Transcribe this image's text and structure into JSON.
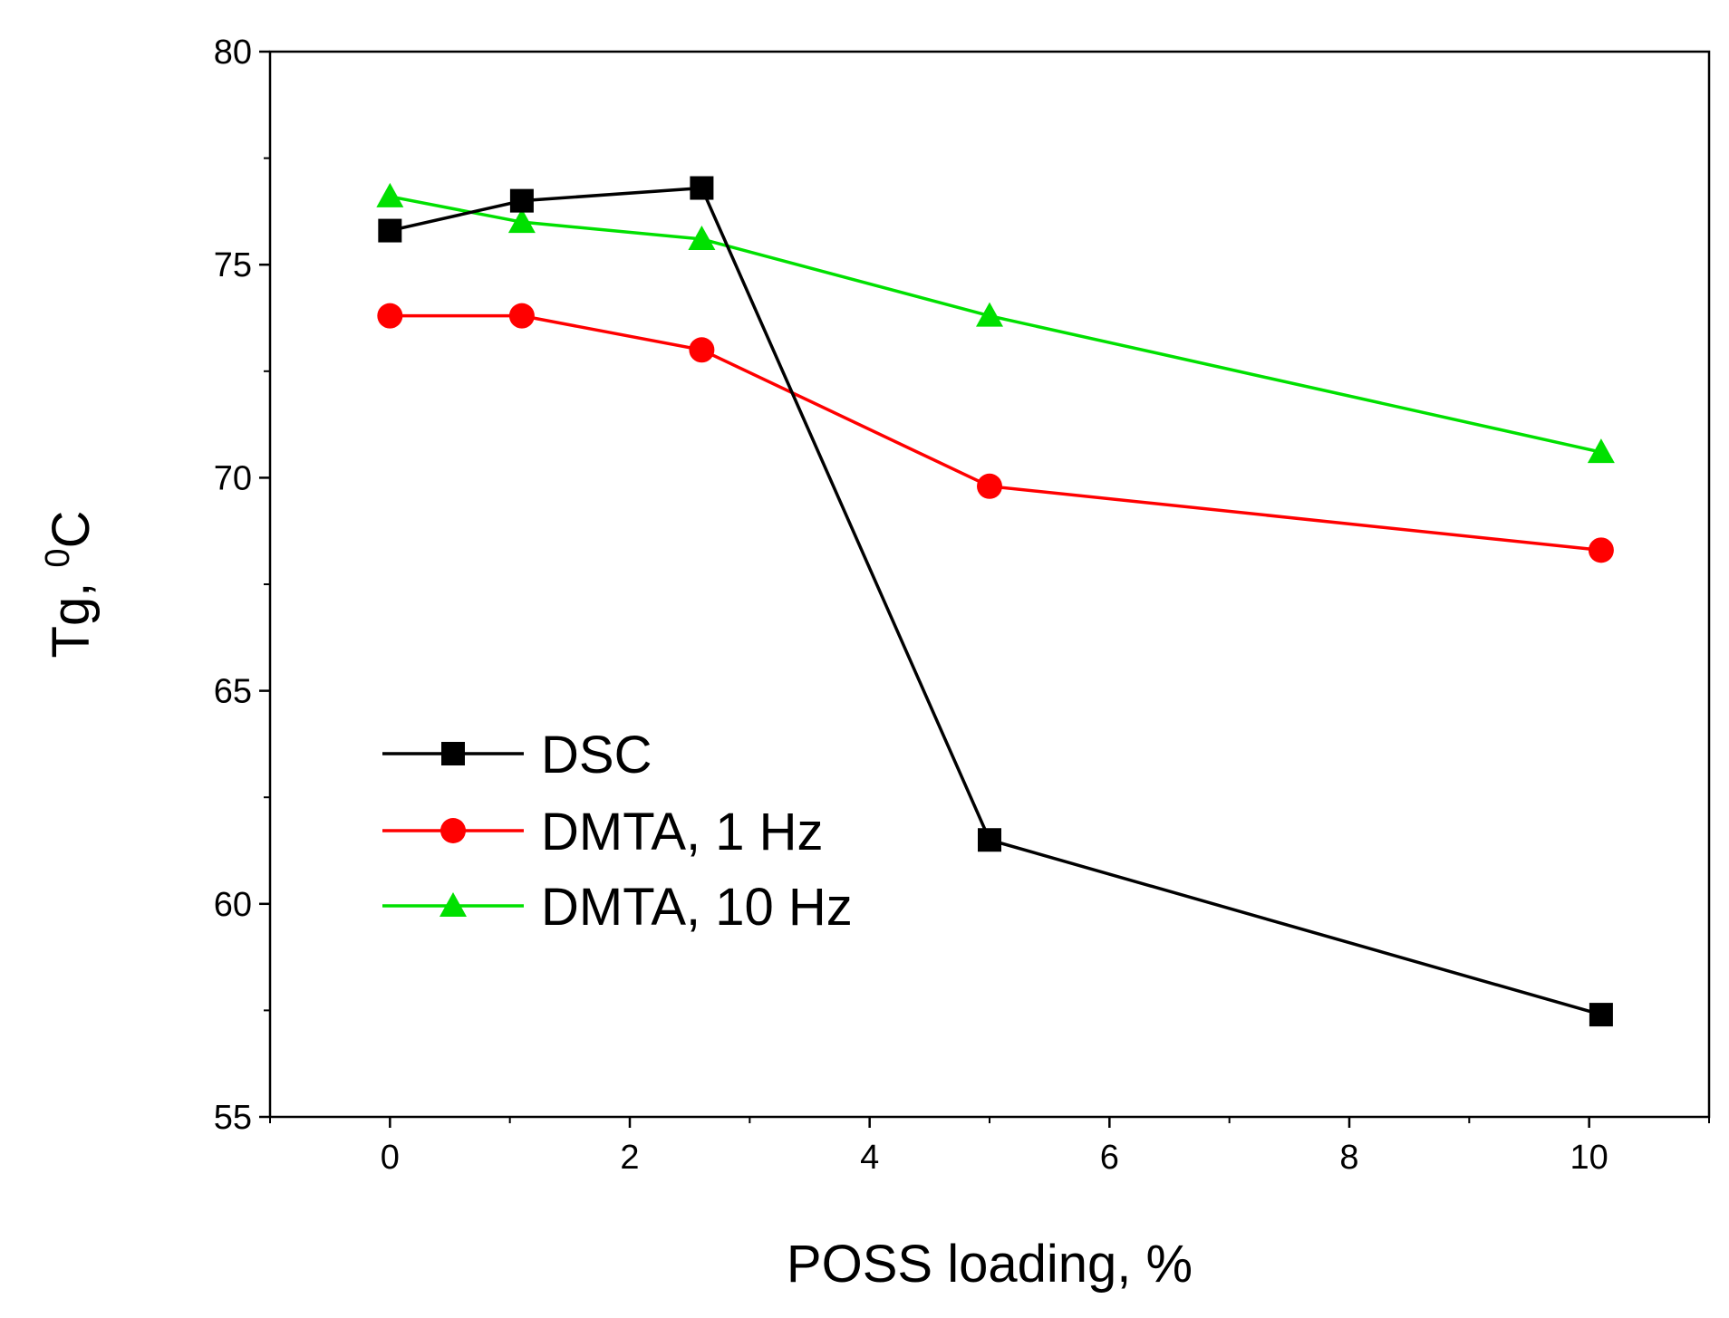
{
  "chart_data": {
    "type": "line",
    "title": "",
    "xlabel": "POSS loading, %",
    "ylabel_main": "Tg, ",
    "ylabel_sup": "0",
    "ylabel_unit": "C",
    "xlim": [
      -1,
      11
    ],
    "ylim": [
      55,
      80
    ],
    "x_ticks": [
      0,
      2,
      4,
      6,
      8,
      10
    ],
    "y_ticks": [
      55,
      60,
      65,
      70,
      75,
      80
    ],
    "x_tick_labels": [
      "0",
      "2",
      "4",
      "6",
      "8",
      "10"
    ],
    "y_tick_labels": [
      "55",
      "60",
      "65",
      "70",
      "75",
      "80"
    ],
    "legend_position": "lower-left",
    "grid": false,
    "series": [
      {
        "name": "DSC",
        "color": "#000000",
        "marker": "square",
        "x": [
          0,
          1.1,
          2.6,
          5,
          10.1
        ],
        "y": [
          75.8,
          76.5,
          76.8,
          61.5,
          57.4
        ]
      },
      {
        "name": "DMTA, 1 Hz",
        "color": "#ff0000",
        "marker": "circle",
        "x": [
          0,
          1.1,
          2.6,
          5,
          10.1
        ],
        "y": [
          73.8,
          73.8,
          73.0,
          69.8,
          68.3
        ]
      },
      {
        "name": "DMTA, 10 Hz",
        "color": "#00e000",
        "marker": "triangle",
        "x": [
          0,
          1.1,
          2.6,
          5,
          10.1
        ],
        "y": [
          76.6,
          76.0,
          75.6,
          73.8,
          70.6
        ]
      }
    ]
  }
}
